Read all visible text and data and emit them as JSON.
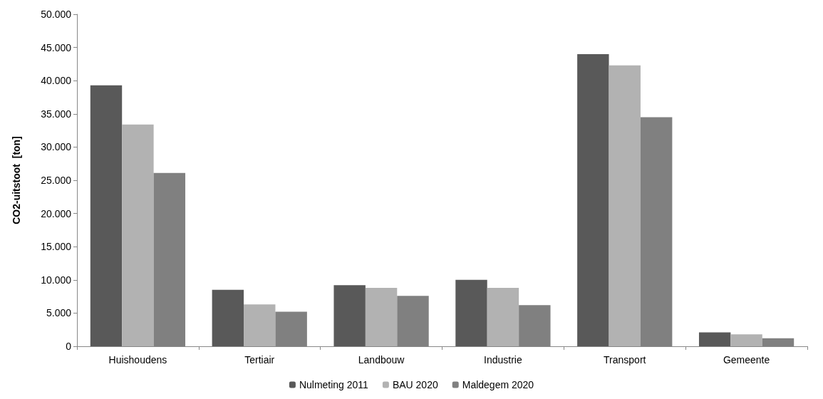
{
  "chart_data": {
    "type": "bar",
    "ylabel": "CO2-uitstoot  [ton]",
    "categories": [
      "Huishoudens",
      "Tertiair",
      "Landbouw",
      "Industrie",
      "Transport",
      "Gemeente"
    ],
    "series": [
      {
        "name": "Nulmeting 2011",
        "color": "#595959",
        "values": [
          39300,
          8500,
          9200,
          10000,
          44000,
          2100
        ]
      },
      {
        "name": "BAU 2020",
        "color": "#b2b2b2",
        "values": [
          33400,
          6300,
          8800,
          8800,
          42300,
          1800
        ]
      },
      {
        "name": "Maldegem 2020",
        "color": "#808080",
        "values": [
          26100,
          5200,
          7600,
          6200,
          34500,
          1200
        ]
      }
    ],
    "ylim": [
      0,
      50000
    ],
    "yticks": [
      {
        "value": 0,
        "label": "0"
      },
      {
        "value": 5000,
        "label": "5.000"
      },
      {
        "value": 10000,
        "label": "10.000"
      },
      {
        "value": 15000,
        "label": "15.000"
      },
      {
        "value": 20000,
        "label": "20.000"
      },
      {
        "value": 25000,
        "label": "25.000"
      },
      {
        "value": 30000,
        "label": "30.000"
      },
      {
        "value": 35000,
        "label": "35.000"
      },
      {
        "value": 40000,
        "label": "40.000"
      },
      {
        "value": 45000,
        "label": "45.000"
      },
      {
        "value": 50000,
        "label": "50.000"
      }
    ],
    "grid": false,
    "legend": "bottom"
  }
}
